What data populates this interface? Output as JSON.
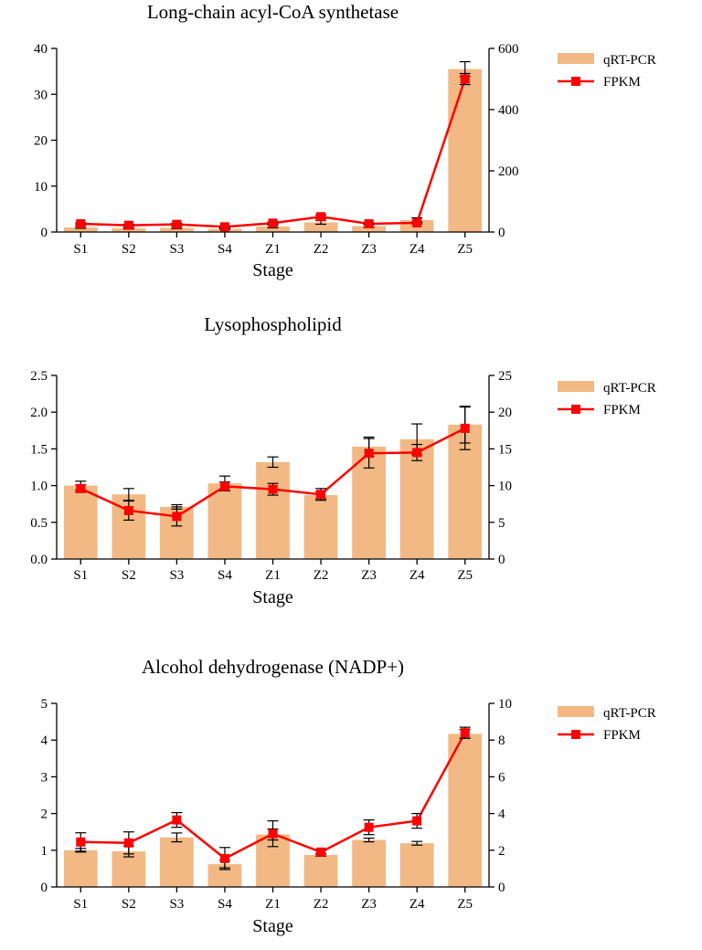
{
  "chart_data": [
    {
      "type": "bar",
      "title": "Long-chain acyl-CoA synthetase",
      "xlabel": "Stage",
      "ylabel": "",
      "y2label": "",
      "categories": [
        "S1",
        "S2",
        "S3",
        "S4",
        "Z1",
        "Z2",
        "Z3",
        "Z4",
        "Z5"
      ],
      "ylim": [
        0,
        40
      ],
      "y2lim": [
        0,
        600
      ],
      "yticks": [
        "0",
        "10",
        "20",
        "30",
        "40"
      ],
      "y2ticks": [
        "0",
        "200",
        "400",
        "600"
      ],
      "series": [
        {
          "name": "qRT-PCR",
          "type": "bar",
          "axis": "left",
          "color": "#f2b984",
          "values": [
            1.0,
            0.8,
            0.9,
            0.7,
            1.2,
            2.1,
            1.3,
            2.6,
            35.5
          ],
          "errors": [
            0.2,
            0.1,
            0.2,
            0.1,
            0.3,
            0.4,
            0.3,
            0.5,
            1.6
          ]
        },
        {
          "name": "FPKM",
          "type": "line",
          "axis": "right",
          "color": "#ff0000",
          "values": [
            27,
            22,
            25,
            17,
            29,
            50,
            27,
            30,
            500
          ],
          "errors": [
            3,
            3,
            3,
            2,
            3,
            6,
            3,
            3,
            18
          ]
        }
      ],
      "legend": "top-right"
    },
    {
      "type": "bar",
      "title": "Lysophospholipid",
      "xlabel": "Stage",
      "ylabel": "",
      "y2label": "",
      "categories": [
        "S1",
        "S2",
        "S3",
        "S4",
        "Z1",
        "Z2",
        "Z3",
        "Z4",
        "Z5"
      ],
      "ylim": [
        0,
        2.5
      ],
      "y2lim": [
        0,
        25
      ],
      "yticks": [
        "0.0",
        "0.5",
        "1.0",
        "1.5",
        "2.0",
        "2.5"
      ],
      "y2ticks": [
        "0",
        "5",
        "10",
        "15",
        "20",
        "25"
      ],
      "series": [
        {
          "name": "qRT-PCR",
          "type": "bar",
          "axis": "left",
          "color": "#f2b984",
          "values": [
            1.0,
            0.88,
            0.71,
            1.03,
            1.32,
            0.87,
            1.53,
            1.63,
            1.83
          ],
          "errors": [
            0.06,
            0.08,
            0.03,
            0.1,
            0.07,
            0.05,
            0.13,
            0.21,
            0.25
          ]
        },
        {
          "name": "FPKM",
          "type": "line",
          "axis": "right",
          "color": "#ff0000",
          "values": [
            9.6,
            6.6,
            5.8,
            9.9,
            9.5,
            8.8,
            14.4,
            14.5,
            17.8
          ],
          "errors": [
            0.5,
            1.3,
            1.3,
            0.6,
            0.8,
            0.8,
            2.0,
            1.1,
            2.9
          ]
        }
      ],
      "legend": "top-right"
    },
    {
      "type": "bar",
      "title": "Alcohol dehydrogenase (NADP+)",
      "xlabel": "Stage",
      "ylabel": "",
      "y2label": "",
      "categories": [
        "S1",
        "S2",
        "S3",
        "S4",
        "Z1",
        "Z2",
        "Z3",
        "Z4",
        "Z5"
      ],
      "ylim": [
        0,
        5
      ],
      "y2lim": [
        0,
        10
      ],
      "yticks": [
        "0",
        "1",
        "2",
        "3",
        "4",
        "5"
      ],
      "y2ticks": [
        "0",
        "2",
        "4",
        "6",
        "8",
        "10"
      ],
      "series": [
        {
          "name": "qRT-PCR",
          "type": "bar",
          "axis": "left",
          "color": "#f2b984",
          "values": [
            1.0,
            0.97,
            1.35,
            0.62,
            1.43,
            0.87,
            1.28,
            1.19,
            4.17
          ],
          "errors": [
            0.05,
            0.15,
            0.12,
            0.1,
            0.15,
            0.03,
            0.05,
            0.05,
            0.12
          ]
        },
        {
          "name": "FPKM",
          "type": "line",
          "axis": "right",
          "color": "#ff0000",
          "values": [
            2.45,
            2.4,
            3.65,
            1.55,
            2.9,
            1.9,
            3.25,
            3.6,
            8.4
          ],
          "errors": [
            0.5,
            0.6,
            0.4,
            0.6,
            0.7,
            0.1,
            0.4,
            0.4,
            0.3
          ]
        }
      ],
      "legend": "top-right"
    }
  ]
}
